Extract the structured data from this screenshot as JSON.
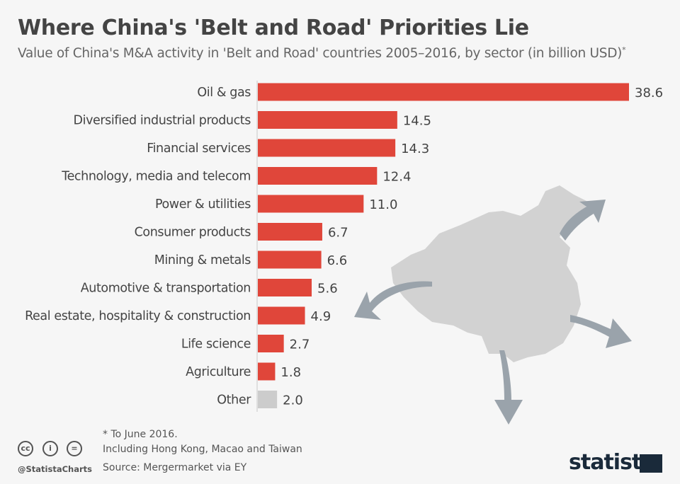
{
  "chart_data": {
    "type": "bar",
    "orientation": "horizontal",
    "title": "Where China's 'Belt and Road' Priorities Lie",
    "subtitle": "Value of China's M&A activity in 'Belt and Road' countries 2005–2016, by sector (in billion USD)",
    "subtitle_mark": "*",
    "categories": [
      "Oil & gas",
      "Diversified industrial products",
      "Financial services",
      "Technology, media and telecom",
      "Power & utilities",
      "Consumer products",
      "Mining & metals",
      "Automotive & transportation",
      "Real estate, hospitality & construction",
      "Life science",
      "Agriculture",
      "Other"
    ],
    "values": [
      38.6,
      14.5,
      14.3,
      12.4,
      11.0,
      6.7,
      6.6,
      5.6,
      4.9,
      2.7,
      1.8,
      2.0
    ],
    "value_labels": [
      "38.6",
      "14.5",
      "14.3",
      "12.4",
      "11.0",
      "6.7",
      "6.6",
      "5.6",
      "4.9",
      "2.7",
      "1.8",
      "2.0"
    ],
    "colors": {
      "bar": "#e0463a",
      "other": "#cccccc"
    },
    "grid": false,
    "xlim": [
      0,
      38.6
    ]
  },
  "footer": {
    "note1": "* To June 2016.",
    "note2": "Including Hong Kong, Macao and Taiwan",
    "source": "Source: Mergermarket via EY",
    "handle": "@StatistaCharts",
    "logo": "statista",
    "cc_icons": [
      "cc-icon",
      "by-icon",
      "nd-icon"
    ]
  }
}
